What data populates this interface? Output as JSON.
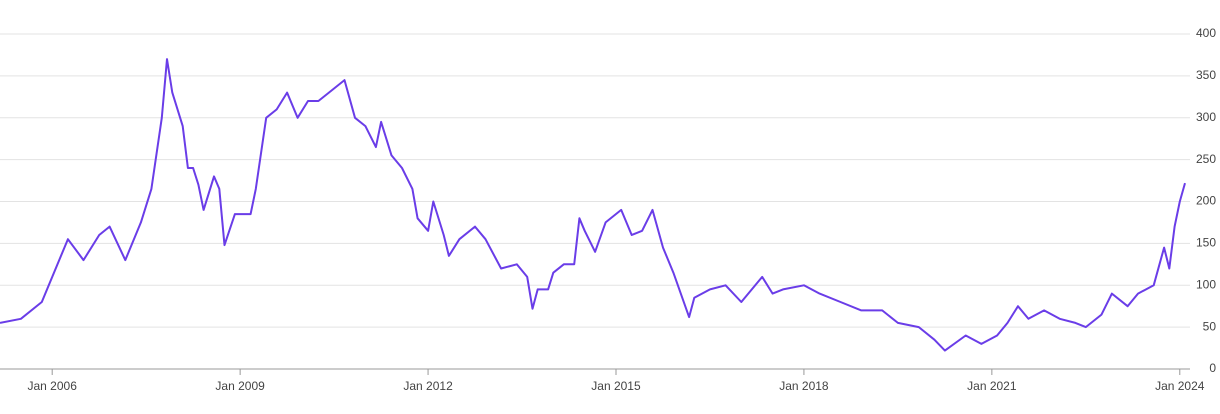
{
  "chart_data": {
    "type": "line",
    "x": [
      "2005-03",
      "2005-07",
      "2005-11",
      "2006-04",
      "2006-07",
      "2006-10",
      "2006-12",
      "2007-03",
      "2007-06",
      "2007-08",
      "2007-10",
      "2007-11",
      "2007-12",
      "2008-02",
      "2008-03",
      "2008-04",
      "2008-05",
      "2008-06",
      "2008-08",
      "2008-09",
      "2008-10",
      "2008-12",
      "2009-03",
      "2009-04",
      "2009-06",
      "2009-08",
      "2009-10",
      "2009-12",
      "2010-02",
      "2010-04",
      "2010-06",
      "2010-09",
      "2010-11",
      "2011-01",
      "2011-03",
      "2011-04",
      "2011-06",
      "2011-08",
      "2011-10",
      "2011-11",
      "2012-01",
      "2012-02",
      "2012-04",
      "2012-05",
      "2012-07",
      "2012-10",
      "2012-12",
      "2013-03",
      "2013-06",
      "2013-08",
      "2013-09",
      "2013-10",
      "2013-12",
      "2014-01",
      "2014-03",
      "2014-05",
      "2014-06",
      "2014-07",
      "2014-09",
      "2014-11",
      "2015-02",
      "2015-04",
      "2015-06",
      "2015-08",
      "2015-10",
      "2015-12",
      "2016-03",
      "2016-04",
      "2016-07",
      "2016-10",
      "2017-01",
      "2017-05",
      "2017-07",
      "2017-09",
      "2018-01",
      "2018-04",
      "2018-08",
      "2018-12",
      "2019-04",
      "2019-07",
      "2019-11",
      "2020-02",
      "2020-04",
      "2020-08",
      "2020-11",
      "2021-02",
      "2021-04",
      "2021-06",
      "2021-08",
      "2021-11",
      "2022-02",
      "2022-05",
      "2022-07",
      "2022-10",
      "2022-12",
      "2023-03",
      "2023-05",
      "2023-08",
      "2023-10",
      "2023-11",
      "2023-12",
      "2024-01",
      "2024-02"
    ],
    "series": [
      {
        "color": "#6a3de8",
        "values": [
          55,
          60,
          80,
          155,
          130,
          160,
          170,
          130,
          175,
          215,
          300,
          370,
          330,
          290,
          240,
          240,
          220,
          190,
          230,
          215,
          148,
          185,
          185,
          215,
          300,
          310,
          330,
          300,
          320,
          320,
          330,
          345,
          300,
          290,
          265,
          295,
          255,
          240,
          215,
          180,
          165,
          200,
          160,
          135,
          155,
          170,
          155,
          120,
          125,
          110,
          72,
          95,
          95,
          115,
          125,
          125,
          180,
          165,
          140,
          175,
          190,
          160,
          165,
          190,
          145,
          115,
          62,
          85,
          95,
          100,
          80,
          110,
          90,
          95,
          100,
          90,
          80,
          70,
          70,
          55,
          50,
          35,
          22,
          40,
          30,
          40,
          55,
          75,
          60,
          70,
          60,
          55,
          50,
          65,
          90,
          75,
          90,
          100,
          145,
          120,
          170,
          200,
          222
        ]
      }
    ],
    "xlim": [
      "2005-03",
      "2024-02"
    ],
    "xticks": [
      {
        "value": "2006-01",
        "label": "Jan 2006"
      },
      {
        "value": "2009-01",
        "label": "Jan 2009"
      },
      {
        "value": "2012-01",
        "label": "Jan 2012"
      },
      {
        "value": "2015-01",
        "label": "Jan 2015"
      },
      {
        "value": "2018-01",
        "label": "Jan 2018"
      },
      {
        "value": "2021-01",
        "label": "Jan 2021"
      },
      {
        "value": "2024-01",
        "label": "Jan 2024"
      }
    ],
    "ylim": [
      0,
      400
    ],
    "yticks": [
      0,
      50,
      100,
      150,
      200,
      250,
      300,
      350,
      400
    ],
    "grid": true
  }
}
